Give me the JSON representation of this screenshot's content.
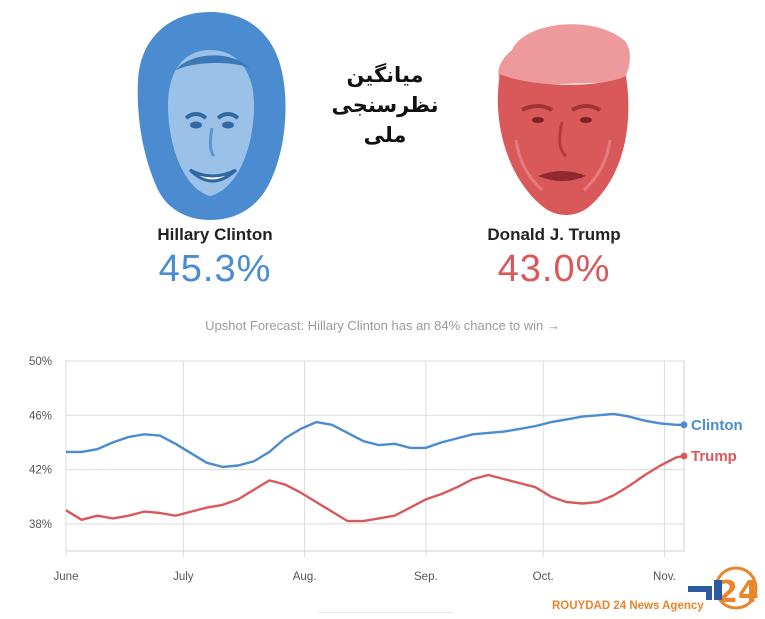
{
  "headline": "میانگین نظرسنجی ملی",
  "candidates": [
    {
      "name": "Hillary Clinton",
      "percent": "45.3%",
      "color": "#4a8ccf"
    },
    {
      "name": "Donald J. Trump",
      "percent": "43.0%",
      "color": "#d9595b"
    }
  ],
  "forecast_text": "Upshot Forecast: Hillary Clinton has an 84% chance to win →",
  "watermark": "ROUYDAD 24 News Agency",
  "chart_data": {
    "type": "line",
    "title": "",
    "xlabel": "",
    "ylabel": "",
    "ylim": [
      36,
      50
    ],
    "yticks": [
      "50%",
      "46%",
      "42%",
      "38%"
    ],
    "ytick_values": [
      50,
      46,
      42,
      38
    ],
    "xlim": [
      0,
      158
    ],
    "xticks": [
      "June",
      "July",
      "Aug.",
      "Sep.",
      "Oct.",
      "Nov."
    ],
    "xtick_values": [
      0,
      30,
      61,
      92,
      122,
      153
    ],
    "grid": true,
    "series": [
      {
        "name": "Clinton",
        "color": "#4a8ccf",
        "end_marker": true,
        "x": [
          0,
          4,
          8,
          12,
          16,
          20,
          24,
          28,
          32,
          36,
          40,
          44,
          48,
          52,
          56,
          60,
          64,
          68,
          72,
          76,
          80,
          84,
          88,
          92,
          96,
          100,
          104,
          108,
          112,
          116,
          120,
          124,
          128,
          132,
          136,
          140,
          144,
          148,
          152,
          156,
          158
        ],
        "y": [
          43.3,
          43.3,
          43.5,
          44.0,
          44.4,
          44.6,
          44.5,
          43.9,
          43.2,
          42.5,
          42.2,
          42.3,
          42.6,
          43.3,
          44.3,
          45.0,
          45.5,
          45.3,
          44.7,
          44.1,
          43.8,
          43.9,
          43.6,
          43.6,
          44.0,
          44.3,
          44.6,
          44.7,
          44.8,
          45.0,
          45.2,
          45.5,
          45.7,
          45.9,
          46.0,
          46.1,
          45.9,
          45.6,
          45.4,
          45.3,
          45.3
        ]
      },
      {
        "name": "Trump",
        "color": "#d9595b",
        "end_marker": true,
        "x": [
          0,
          4,
          8,
          12,
          16,
          20,
          24,
          28,
          32,
          36,
          40,
          44,
          48,
          52,
          56,
          60,
          64,
          68,
          72,
          76,
          80,
          84,
          88,
          92,
          96,
          100,
          104,
          108,
          112,
          116,
          120,
          124,
          128,
          132,
          136,
          140,
          144,
          148,
          152,
          156,
          158
        ],
        "y": [
          39.0,
          38.3,
          38.6,
          38.4,
          38.6,
          38.9,
          38.8,
          38.6,
          38.9,
          39.2,
          39.4,
          39.8,
          40.5,
          41.2,
          40.9,
          40.3,
          39.6,
          38.9,
          38.2,
          38.2,
          38.4,
          38.6,
          39.2,
          39.8,
          40.2,
          40.7,
          41.3,
          41.6,
          41.3,
          41.0,
          40.7,
          40.0,
          39.6,
          39.5,
          39.6,
          40.1,
          40.8,
          41.6,
          42.3,
          42.9,
          43.0
        ]
      }
    ]
  }
}
